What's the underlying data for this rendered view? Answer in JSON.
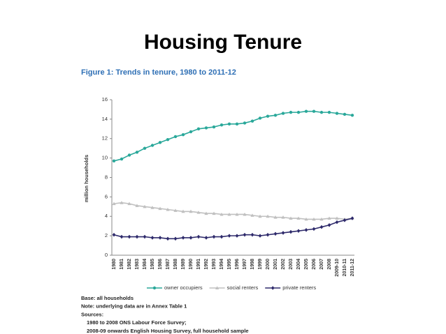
{
  "slide_title": "Housing Tenure",
  "chart_data": {
    "type": "line",
    "title": "Figure 1: Trends in tenure, 1980 to 2011-12",
    "y_label": "million households",
    "categories": [
      "1980",
      "1981",
      "1982",
      "1983",
      "1984",
      "1985",
      "1986",
      "1987",
      "1988",
      "1989",
      "1990",
      "1991",
      "1992",
      "1993",
      "1994",
      "1995",
      "1996",
      "1997",
      "1998",
      "1999",
      "2000",
      "2001",
      "2002",
      "2003",
      "2004",
      "2005",
      "2006",
      "2007",
      "2008",
      "2009-10",
      "2010-11",
      "2011-12"
    ],
    "series": [
      {
        "name": "owner occupiers",
        "color": "#2aa89a",
        "marker": "circle",
        "values": [
          9.7,
          9.9,
          10.3,
          10.6,
          11.0,
          11.3,
          11.6,
          11.9,
          12.2,
          12.4,
          12.7,
          13.0,
          13.1,
          13.2,
          13.4,
          13.5,
          13.5,
          13.6,
          13.8,
          14.1,
          14.3,
          14.4,
          14.6,
          14.7,
          14.7,
          14.8,
          14.8,
          14.7,
          14.7,
          14.6,
          14.5,
          14.4
        ]
      },
      {
        "name": "social renters",
        "color": "#c0c0c0",
        "marker": "triangle",
        "values": [
          5.3,
          5.4,
          5.3,
          5.1,
          5.0,
          4.9,
          4.8,
          4.7,
          4.6,
          4.5,
          4.5,
          4.4,
          4.3,
          4.3,
          4.2,
          4.2,
          4.2,
          4.2,
          4.1,
          4.0,
          4.0,
          3.9,
          3.9,
          3.8,
          3.8,
          3.7,
          3.7,
          3.7,
          3.8,
          3.8,
          3.7,
          3.8
        ]
      },
      {
        "name": "private renters",
        "color": "#2e2a6b",
        "marker": "diamond",
        "values": [
          2.1,
          1.9,
          1.9,
          1.9,
          1.9,
          1.8,
          1.8,
          1.7,
          1.7,
          1.8,
          1.8,
          1.9,
          1.8,
          1.9,
          1.9,
          2.0,
          2.0,
          2.1,
          2.1,
          2.0,
          2.1,
          2.2,
          2.3,
          2.4,
          2.5,
          2.6,
          2.7,
          2.9,
          3.1,
          3.4,
          3.6,
          3.8
        ]
      }
    ],
    "ylim": [
      0,
      16
    ],
    "yticks": [
      0,
      2,
      4,
      6,
      8,
      10,
      12,
      14,
      16
    ],
    "grid": false,
    "legend": "bottom"
  },
  "notes": [
    "Base: all households",
    "Note: underlying data are in Annex Table 1",
    "Sources:",
    "1980 to 2008 ONS Labour Force Survey;",
    "2008-09 onwards English Housing Survey, full household sample"
  ]
}
